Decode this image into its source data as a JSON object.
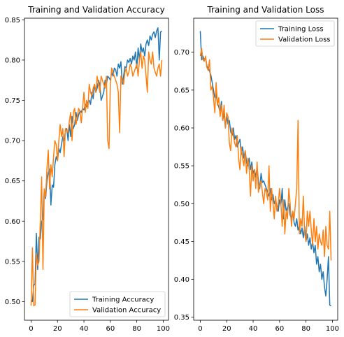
{
  "chart_data": [
    {
      "type": "line",
      "title": "Training and Validation Accuracy",
      "xlabel": "",
      "ylabel": "",
      "xlim": [
        -5,
        104
      ],
      "ylim": [
        0.477,
        0.852
      ],
      "xticks": [
        0,
        20,
        40,
        60,
        80,
        100
      ],
      "yticks": [
        0.5,
        0.55,
        0.6,
        0.65,
        0.7,
        0.75,
        0.8,
        0.85
      ],
      "ytick_labels": [
        "0.50",
        "0.55",
        "0.60",
        "0.65",
        "0.70",
        "0.75",
        "0.80",
        "0.85"
      ],
      "grid": false,
      "legend_position": "lower-right",
      "series": [
        {
          "name": "Training Accuracy",
          "color": "#1f77b4",
          "values": [
            0.502,
            0.5,
            0.52,
            0.522,
            0.585,
            0.54,
            0.58,
            0.578,
            0.6,
            0.602,
            0.64,
            0.628,
            0.65,
            0.66,
            0.665,
            0.62,
            0.645,
            0.642,
            0.67,
            0.68,
            0.675,
            0.69,
            0.685,
            0.695,
            0.705,
            0.7,
            0.712,
            0.715,
            0.7,
            0.72,
            0.705,
            0.73,
            0.715,
            0.72,
            0.735,
            0.725,
            0.732,
            0.737,
            0.735,
            0.74,
            0.738,
            0.745,
            0.742,
            0.748,
            0.75,
            0.745,
            0.76,
            0.752,
            0.77,
            0.76,
            0.765,
            0.775,
            0.77,
            0.75,
            0.755,
            0.76,
            0.775,
            0.77,
            0.78,
            0.778,
            0.775,
            0.785,
            0.78,
            0.79,
            0.788,
            0.78,
            0.795,
            0.79,
            0.798,
            0.77,
            0.78,
            0.792,
            0.79,
            0.8,
            0.797,
            0.802,
            0.795,
            0.805,
            0.8,
            0.81,
            0.79,
            0.815,
            0.8,
            0.82,
            0.81,
            0.815,
            0.805,
            0.82,
            0.825,
            0.818,
            0.83,
            0.825,
            0.832,
            0.835,
            0.828,
            0.836,
            0.84,
            0.8,
            0.835,
            0.836
          ]
        },
        {
          "name": "Validation Accuracy",
          "color": "#ff7f0e",
          "values": [
            0.495,
            0.567,
            0.495,
            0.496,
            0.56,
            0.545,
            0.55,
            0.6,
            0.655,
            0.54,
            0.64,
            0.63,
            0.665,
            0.688,
            0.64,
            0.67,
            0.655,
            0.68,
            0.7,
            0.695,
            0.675,
            0.7,
            0.72,
            0.705,
            0.715,
            0.68,
            0.715,
            0.712,
            0.71,
            0.725,
            0.735,
            0.7,
            0.735,
            0.74,
            0.72,
            0.73,
            0.74,
            0.736,
            0.722,
            0.741,
            0.76,
            0.735,
            0.75,
            0.74,
            0.77,
            0.76,
            0.755,
            0.765,
            0.77,
            0.76,
            0.78,
            0.77,
            0.76,
            0.78,
            0.775,
            0.77,
            0.765,
            0.78,
            0.7,
            0.69,
            0.77,
            0.79,
            0.785,
            0.78,
            0.775,
            0.77,
            0.76,
            0.71,
            0.78,
            0.775,
            0.77,
            0.785,
            0.79,
            0.78,
            0.785,
            0.795,
            0.79,
            0.78,
            0.785,
            0.79,
            0.795,
            0.78,
            0.8,
            0.81,
            0.79,
            0.805,
            0.8,
            0.78,
            0.76,
            0.81,
            0.8,
            0.795,
            0.81,
            0.79,
            0.785,
            0.78,
            0.79,
            0.795,
            0.78,
            0.8
          ]
        }
      ]
    },
    {
      "type": "line",
      "title": "Training and Validation Loss",
      "xlabel": "",
      "ylabel": "",
      "xlim": [
        -5,
        104
      ],
      "ylim": [
        0.346,
        0.745
      ],
      "xticks": [
        0,
        20,
        40,
        60,
        80,
        100
      ],
      "yticks": [
        0.35,
        0.4,
        0.45,
        0.5,
        0.55,
        0.6,
        0.65,
        0.7
      ],
      "ytick_labels": [
        "0.35",
        "0.40",
        "0.45",
        "0.50",
        "0.55",
        "0.60",
        "0.65",
        "0.70"
      ],
      "grid": false,
      "legend_position": "upper-right",
      "series": [
        {
          "name": "Training Loss",
          "color": "#1f77b4",
          "values": [
            0.728,
            0.69,
            0.695,
            0.69,
            0.693,
            0.682,
            0.679,
            0.675,
            0.67,
            0.66,
            0.65,
            0.64,
            0.645,
            0.632,
            0.628,
            0.62,
            0.635,
            0.61,
            0.62,
            0.6,
            0.615,
            0.605,
            0.61,
            0.595,
            0.59,
            0.6,
            0.585,
            0.59,
            0.575,
            0.58,
            0.585,
            0.565,
            0.575,
            0.56,
            0.57,
            0.555,
            0.55,
            0.56,
            0.545,
            0.555,
            0.54,
            0.545,
            0.535,
            0.548,
            0.53,
            0.52,
            0.54,
            0.528,
            0.53,
            0.525,
            0.52,
            0.515,
            0.51,
            0.52,
            0.505,
            0.512,
            0.5,
            0.505,
            0.495,
            0.49,
            0.505,
            0.498,
            0.52,
            0.48,
            0.505,
            0.49,
            0.495,
            0.5,
            0.485,
            0.48,
            0.49,
            0.475,
            0.47,
            0.48,
            0.465,
            0.47,
            0.46,
            0.468,
            0.455,
            0.47,
            0.45,
            0.46,
            0.445,
            0.455,
            0.44,
            0.45,
            0.435,
            0.445,
            0.42,
            0.43,
            0.41,
            0.42,
            0.4,
            0.41,
            0.39,
            0.378,
            0.4,
            0.43,
            0.366,
            0.365
          ]
        },
        {
          "name": "Validation Loss",
          "color": "#ff7f0e",
          "values": [
            0.695,
            0.705,
            0.69,
            0.688,
            0.695,
            0.68,
            0.676,
            0.69,
            0.65,
            0.655,
            0.64,
            0.62,
            0.66,
            0.63,
            0.64,
            0.615,
            0.63,
            0.61,
            0.63,
            0.6,
            0.62,
            0.615,
            0.58,
            0.57,
            0.6,
            0.59,
            0.58,
            0.575,
            0.59,
            0.56,
            0.545,
            0.575,
            0.56,
            0.55,
            0.57,
            0.54,
            0.56,
            0.545,
            0.51,
            0.55,
            0.53,
            0.545,
            0.52,
            0.555,
            0.515,
            0.525,
            0.53,
            0.515,
            0.5,
            0.52,
            0.515,
            0.505,
            0.55,
            0.49,
            0.52,
            0.5,
            0.48,
            0.51,
            0.49,
            0.5,
            0.52,
            0.5,
            0.47,
            0.505,
            0.46,
            0.49,
            0.48,
            0.52,
            0.5,
            0.47,
            0.49,
            0.48,
            0.5,
            0.52,
            0.61,
            0.46,
            0.48,
            0.47,
            0.51,
            0.46,
            0.45,
            0.49,
            0.47,
            0.49,
            0.465,
            0.445,
            0.48,
            0.45,
            0.47,
            0.44,
            0.46,
            0.45,
            0.445,
            0.465,
            0.43,
            0.47,
            0.445,
            0.44,
            0.49,
            0.425
          ]
        }
      ]
    }
  ]
}
